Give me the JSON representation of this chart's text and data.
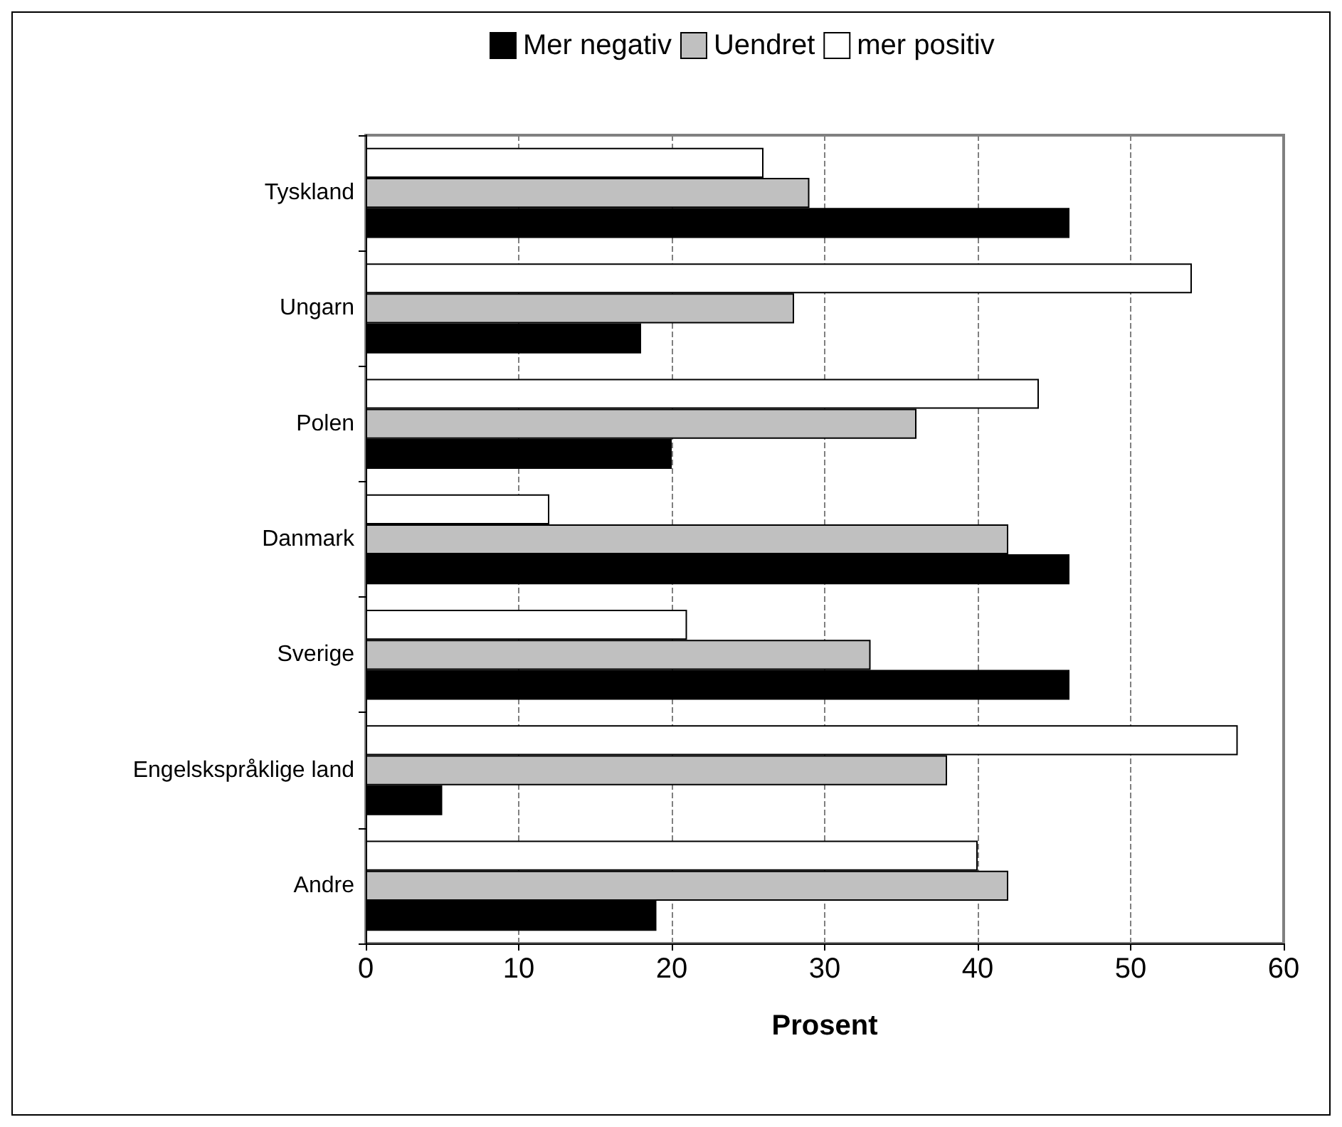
{
  "chart_data": {
    "type": "bar",
    "orientation": "horizontal",
    "xlabel": "Prosent",
    "categories": [
      "Tyskland",
      "Ungarn",
      "Polen",
      "Danmark",
      "Sverige",
      "Engelskspråklige land",
      "Andre"
    ],
    "series": [
      {
        "name": "Mer negativ",
        "color": "#000000",
        "values": [
          46,
          18,
          20,
          46,
          46,
          5,
          19
        ]
      },
      {
        "name": "Uendret",
        "color": "#c0c0c0",
        "values": [
          29,
          28,
          36,
          42,
          33,
          38,
          42
        ]
      },
      {
        "name": "mer positiv",
        "color": "#ffffff",
        "values": [
          26,
          54,
          44,
          12,
          21,
          57,
          40
        ]
      }
    ],
    "xlim": [
      0,
      60
    ],
    "xticks": [
      0,
      10,
      20,
      30,
      40,
      50,
      60
    ],
    "grid": "x",
    "legend": "top"
  }
}
